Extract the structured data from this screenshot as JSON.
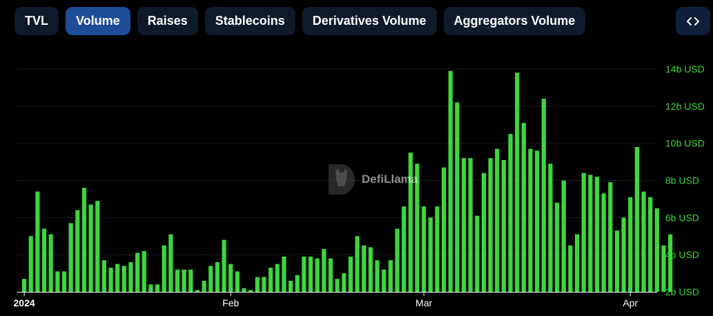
{
  "tabs": [
    "TVL",
    "Volume",
    "Raises",
    "Stablecoins",
    "Derivatives Volume",
    "Aggregators Volume"
  ],
  "active_tab": "Volume",
  "embed_icon": "code-brackets-icon",
  "watermark": "DefiLlama",
  "colors": {
    "bar": "#3dd63d",
    "axis_label": "#3dd63d",
    "tab_bg": "#0f1a2a",
    "tab_active_bg": "#1d4d97",
    "grid": "#1a1a1a"
  },
  "chart_data": {
    "type": "bar",
    "title": "",
    "xlabel": "",
    "ylabel": "",
    "ylim": [
      2,
      14
    ],
    "y_ticks": [
      "2b USD",
      "4b USD",
      "6b USD",
      "8b USD",
      "10b USD",
      "12b USD",
      "14b USD"
    ],
    "x_ticks": [
      {
        "label": "2024",
        "index": 0
      },
      {
        "label": "Feb",
        "index": 31
      },
      {
        "label": "Mar",
        "index": 60
      },
      {
        "label": "Apr",
        "index": 91
      }
    ],
    "grid": true,
    "unit": "b USD",
    "series": [
      {
        "values": [
          2.7,
          5.0,
          7.4,
          5.4,
          5.1,
          3.1,
          3.1,
          5.7,
          6.4,
          7.6,
          6.7,
          6.9,
          3.7,
          3.3,
          3.5,
          3.4,
          3.6,
          4.1,
          4.2,
          2.4,
          2.4,
          4.5,
          5.1,
          3.2,
          3.2,
          3.2,
          2.1,
          2.6,
          3.4,
          3.6,
          4.8,
          3.5,
          3.1,
          2.2,
          2.1,
          2.8,
          2.8,
          3.3,
          3.5,
          3.9,
          2.6,
          2.9,
          3.9,
          3.9,
          3.8,
          4.3,
          3.8,
          2.7,
          3.0,
          3.9,
          5.0,
          4.5,
          4.4,
          3.7,
          3.2,
          3.7,
          5.4,
          6.6,
          9.5,
          8.9,
          6.6,
          6.0,
          6.6,
          8.7,
          13.9,
          12.2,
          9.2,
          9.2,
          6.1,
          8.4,
          9.2,
          9.7,
          9.1,
          10.5,
          13.8,
          11.1,
          9.7,
          9.6,
          12.4,
          8.9,
          6.8,
          8.0,
          4.5,
          5.1,
          8.4,
          8.3,
          8.2,
          7.3,
          7.9,
          5.3,
          6.0,
          7.1,
          9.8,
          7.4,
          7.1,
          6.5,
          4.5,
          5.1
        ]
      }
    ]
  }
}
